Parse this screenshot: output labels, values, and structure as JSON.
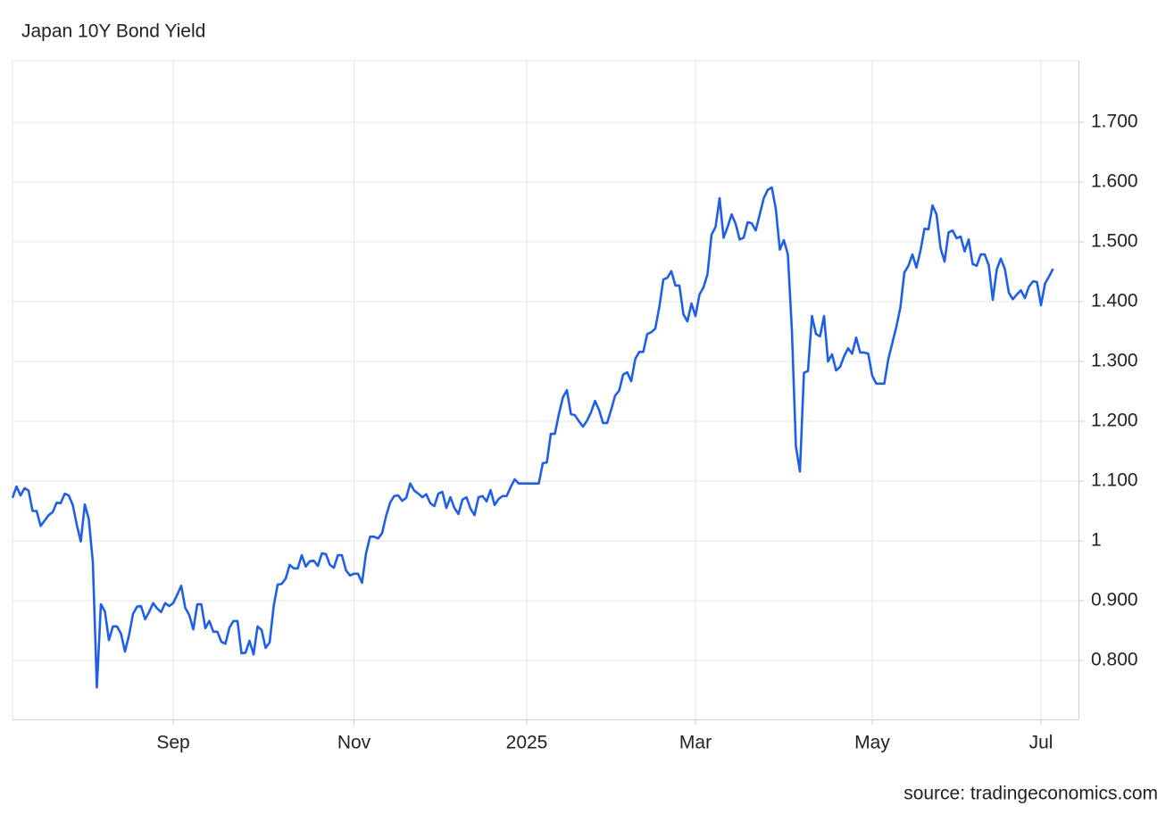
{
  "chart_data": {
    "type": "line",
    "title": "Japan 10Y Bond Yield",
    "source": "source: tradingeconomics.com",
    "color": "#1f5fe8",
    "grid": true,
    "ylim": [
      0.7,
      1.8
    ],
    "yticks": [
      {
        "value": 0.8,
        "label": "0.800"
      },
      {
        "value": 0.9,
        "label": "0.900"
      },
      1,
      {
        "value": 1.1,
        "label": "1.100"
      },
      {
        "value": 1.2,
        "label": "1.200"
      },
      {
        "value": 1.3,
        "label": "1.300"
      },
      {
        "value": 1.4,
        "label": "1.400"
      },
      {
        "value": 1.5,
        "label": "1.500"
      },
      {
        "value": 1.6,
        "label": "1.600"
      },
      {
        "value": 1.7,
        "label": "1.700"
      }
    ],
    "categories": [
      null,
      null,
      null,
      null,
      null,
      null,
      null,
      null,
      null,
      null,
      null,
      null,
      null,
      null,
      null,
      null,
      null,
      null,
      null,
      null,
      null,
      null,
      null,
      null,
      null,
      null,
      null,
      null,
      null,
      null,
      null,
      null,
      null,
      null,
      null,
      null,
      null,
      null,
      null,
      null,
      "Sep",
      null,
      null,
      null,
      null,
      null,
      null,
      null,
      null,
      null,
      null,
      null,
      null,
      null,
      null,
      null,
      null,
      null,
      null,
      null,
      null,
      null,
      null,
      null,
      null,
      null,
      null,
      null,
      null,
      null,
      null,
      null,
      null,
      null,
      null,
      null,
      null,
      null,
      null,
      null,
      null,
      null,
      null,
      null,
      null,
      "Nov",
      null,
      null,
      null,
      null,
      null,
      null,
      null,
      null,
      null,
      null,
      null,
      null,
      null,
      null,
      null,
      null,
      null,
      null,
      null,
      null,
      null,
      null,
      null,
      null,
      null,
      null,
      null,
      null,
      null,
      null,
      null,
      null,
      null,
      null,
      null,
      null,
      null,
      null,
      null,
      null,
      null,
      null,
      "2025",
      null,
      null,
      null,
      null,
      null,
      null,
      null,
      null,
      null,
      null,
      null,
      null,
      null,
      null,
      null,
      null,
      null,
      null,
      null,
      null,
      null,
      null,
      null,
      null,
      null,
      null,
      null,
      null,
      null,
      null,
      null,
      null,
      null,
      null,
      null,
      null,
      null,
      null,
      null,
      null,
      null,
      "Mar",
      null,
      null,
      null,
      null,
      null,
      null,
      null,
      null,
      null,
      null,
      null,
      null,
      null,
      null,
      null,
      null,
      null,
      null,
      null,
      null,
      null,
      null,
      null,
      null,
      null,
      null,
      null,
      null,
      null,
      null,
      null,
      null,
      null,
      null,
      null,
      null,
      null,
      null,
      null,
      null,
      null,
      null,
      null,
      "May",
      null,
      null,
      null,
      null,
      null,
      null,
      null,
      null,
      null,
      null,
      null,
      null,
      null,
      null,
      null,
      null,
      null,
      null,
      null,
      null,
      null,
      null,
      null,
      null,
      null,
      null,
      null,
      null,
      null,
      null,
      null,
      null,
      null,
      null,
      null,
      null,
      null,
      null,
      null,
      null,
      null,
      "Jul",
      null,
      null,
      null
    ],
    "values": [
      1.072,
      1.091,
      1.076,
      1.088,
      1.084,
      1.05,
      1.05,
      1.025,
      1.034,
      1.043,
      1.048,
      1.064,
      1.063,
      1.079,
      1.076,
      1.06,
      1.027,
      0.999,
      1.061,
      1.036,
      0.964,
      0.755,
      0.894,
      0.882,
      0.834,
      0.857,
      0.857,
      0.845,
      0.815,
      0.842,
      0.878,
      0.89,
      0.891,
      0.869,
      0.881,
      0.896,
      0.887,
      0.881,
      0.896,
      0.891,
      0.896,
      0.91,
      0.925,
      0.888,
      0.876,
      0.852,
      0.894,
      0.894,
      0.854,
      0.866,
      0.848,
      0.848,
      0.831,
      0.828,
      0.855,
      0.866,
      0.866,
      0.812,
      0.813,
      0.833,
      0.81,
      0.857,
      0.851,
      0.821,
      0.83,
      0.89,
      0.927,
      0.928,
      0.937,
      0.96,
      0.954,
      0.954,
      0.976,
      0.957,
      0.966,
      0.967,
      0.958,
      0.979,
      0.978,
      0.96,
      0.955,
      0.976,
      0.976,
      0.951,
      0.942,
      0.945,
      0.945,
      0.93,
      0.979,
      1.007,
      1.007,
      1.004,
      1.013,
      1.042,
      1.064,
      1.075,
      1.076,
      1.067,
      1.072,
      1.096,
      1.084,
      1.079,
      1.073,
      1.078,
      1.063,
      1.058,
      1.079,
      1.082,
      1.055,
      1.073,
      1.055,
      1.045,
      1.069,
      1.073,
      1.054,
      1.043,
      1.073,
      1.075,
      1.066,
      1.085,
      1.06,
      1.07,
      1.075,
      1.075,
      1.09,
      1.103,
      1.096,
      1.096,
      1.096,
      1.096,
      1.096,
      1.096,
      1.13,
      1.131,
      1.179,
      1.179,
      1.212,
      1.24,
      1.252,
      1.212,
      1.21,
      1.2,
      1.191,
      1.201,
      1.215,
      1.234,
      1.219,
      1.197,
      1.197,
      1.219,
      1.243,
      1.251,
      1.278,
      1.282,
      1.267,
      1.304,
      1.316,
      1.316,
      1.346,
      1.349,
      1.355,
      1.391,
      1.437,
      1.44,
      1.451,
      1.427,
      1.427,
      1.379,
      1.367,
      1.397,
      1.376,
      1.412,
      1.424,
      1.446,
      1.512,
      1.525,
      1.573,
      1.507,
      1.525,
      1.546,
      1.53,
      1.504,
      1.507,
      1.533,
      1.531,
      1.519,
      1.546,
      1.573,
      1.587,
      1.591,
      1.555,
      1.487,
      1.503,
      1.479,
      1.352,
      1.158,
      1.116,
      1.281,
      1.284,
      1.376,
      1.346,
      1.342,
      1.376,
      1.3,
      1.312,
      1.285,
      1.291,
      1.309,
      1.322,
      1.313,
      1.34,
      1.315,
      1.315,
      1.313,
      1.276,
      1.263,
      1.263,
      1.263,
      1.304,
      1.331,
      1.358,
      1.39,
      1.449,
      1.46,
      1.479,
      1.457,
      1.485,
      1.522,
      1.521,
      1.561,
      1.546,
      1.49,
      1.467,
      1.516,
      1.519,
      1.506,
      1.509,
      1.484,
      1.504,
      1.463,
      1.46,
      1.479,
      1.479,
      1.461,
      1.403,
      1.454,
      1.472,
      1.455,
      1.415,
      1.404,
      1.412,
      1.419,
      1.406,
      1.425,
      1.434,
      1.433,
      1.394,
      1.43,
      1.442,
      1.455
    ]
  }
}
